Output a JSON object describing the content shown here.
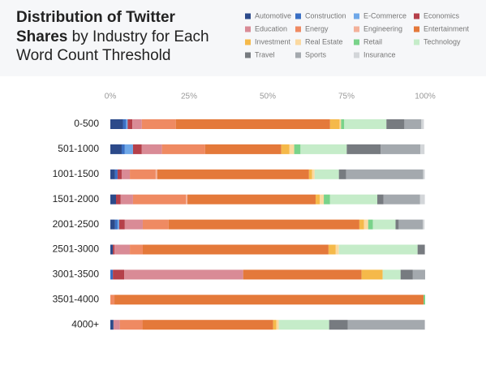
{
  "chart_data": {
    "type": "stacked-bar-horizontal",
    "title": [
      "Distribution of Twitter",
      "Shares",
      "by Industry for Each",
      "Word Count Threshold"
    ],
    "categories": [
      "0-500",
      "501-1000",
      "1001-1500",
      "1501-2000",
      "2001-2500",
      "2501-3000",
      "3001-3500",
      "3501-4000",
      "4000+"
    ],
    "xlim": [
      0,
      100
    ],
    "xticks": [
      {
        "value": 0,
        "label": "0%"
      },
      {
        "value": 25,
        "label": "25%"
      },
      {
        "value": 50,
        "label": "50%"
      },
      {
        "value": 75,
        "label": "75%"
      },
      {
        "value": 100,
        "label": "100%"
      }
    ],
    "grid": false,
    "series": [
      {
        "name": "Automotive",
        "color": "#2c4a8a",
        "values": [
          4,
          3.6,
          1.5,
          1.8,
          1.5,
          0.8,
          0,
          0,
          1
        ]
      },
      {
        "name": "Construction",
        "color": "#3a6fc4",
        "values": [
          1,
          1,
          0.8,
          0,
          0.8,
          0,
          0.8,
          0,
          0
        ]
      },
      {
        "name": "E-Commerce",
        "color": "#6fa8e8",
        "values": [
          0.5,
          2.6,
          0,
          0,
          0.5,
          0,
          0,
          0,
          0
        ]
      },
      {
        "name": "Economics",
        "color": "#b5404a",
        "values": [
          1.5,
          2.8,
          1.3,
          1.5,
          1.8,
          0.5,
          3.6,
          0,
          0
        ]
      },
      {
        "name": "Education",
        "color": "#d98b96",
        "values": [
          3,
          6.4,
          2.6,
          3.9,
          5.7,
          4.9,
          37.8,
          0,
          2
        ]
      },
      {
        "name": "Energy",
        "color": "#ef8a62",
        "values": [
          10.8,
          13.7,
          8.2,
          16.8,
          8.2,
          4.1,
          0,
          1.3,
          7.2
        ]
      },
      {
        "name": "Engineering",
        "color": "#f3b19a",
        "values": [
          0,
          0,
          0.5,
          0.5,
          0,
          0,
          0,
          0,
          0
        ]
      },
      {
        "name": "Entertainment",
        "color": "#e4793a",
        "values": [
          49,
          24.2,
          48.2,
          40.7,
          60.6,
          59,
          37.6,
          98.2,
          41.5
        ]
      },
      {
        "name": "Investment",
        "color": "#f5b94a",
        "values": [
          3,
          2.6,
          1,
          1.3,
          1.5,
          2.3,
          6.7,
          0,
          1
        ]
      },
      {
        "name": "Real Estate",
        "color": "#fbd9a0",
        "values": [
          0.5,
          1.5,
          0.8,
          1.3,
          1.3,
          1,
          0,
          0,
          0.8
        ]
      },
      {
        "name": "Retail",
        "color": "#79d38a",
        "values": [
          1,
          2,
          0,
          2,
          1.5,
          0,
          0,
          0.5,
          0
        ]
      },
      {
        "name": "Technology",
        "color": "#c5ecc9",
        "values": [
          13.4,
          14.7,
          7.7,
          15,
          7.2,
          25,
          5.7,
          0,
          16
        ]
      },
      {
        "name": "Travel",
        "color": "#777b80",
        "values": [
          5.7,
          10.8,
          2.3,
          2,
          1,
          2.3,
          3.9,
          0,
          5.9
        ]
      },
      {
        "name": "Sports",
        "color": "#a4a9ae",
        "values": [
          5.4,
          12.6,
          24.5,
          11.6,
          7.7,
          0,
          3.9,
          0,
          24.5
        ]
      },
      {
        "name": "Insurance",
        "color": "#d3d6d9",
        "values": [
          0.8,
          1.3,
          0.5,
          1.5,
          0.5,
          0,
          0,
          0,
          0
        ]
      }
    ]
  }
}
